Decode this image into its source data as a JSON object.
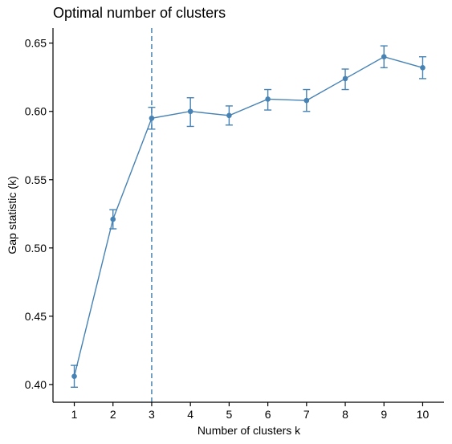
{
  "chart_data": {
    "type": "line",
    "title": "Optimal number of clusters",
    "xlabel": "Number of clusters k",
    "ylabel": "Gap statistic (k)",
    "x": [
      1,
      2,
      3,
      4,
      5,
      6,
      7,
      8,
      9,
      10
    ],
    "series": [
      {
        "values": [
          0.406,
          0.521,
          0.595,
          0.6,
          0.597,
          0.609,
          0.608,
          0.624,
          0.64,
          0.632
        ],
        "error_low": [
          0.398,
          0.514,
          0.587,
          0.589,
          0.59,
          0.601,
          0.6,
          0.616,
          0.632,
          0.624
        ],
        "error_high": [
          0.414,
          0.528,
          0.603,
          0.61,
          0.604,
          0.616,
          0.616,
          0.631,
          0.648,
          0.64
        ]
      }
    ],
    "optimal_k": 3,
    "xticks": [
      1,
      2,
      3,
      4,
      5,
      6,
      7,
      8,
      9,
      10
    ],
    "yticks": [
      0.4,
      0.45,
      0.5,
      0.55,
      0.6,
      0.65
    ],
    "ytick_labels": [
      "0.40",
      "0.45",
      "0.50",
      "0.55",
      "0.60",
      "0.65"
    ],
    "xlim": [
      0.45,
      10.55
    ],
    "ylim": [
      0.387,
      0.661
    ],
    "grid": false,
    "legend": "none",
    "colors": {
      "series": "#4682B4",
      "axis": "#000000",
      "background": "#FFFFFF"
    }
  }
}
